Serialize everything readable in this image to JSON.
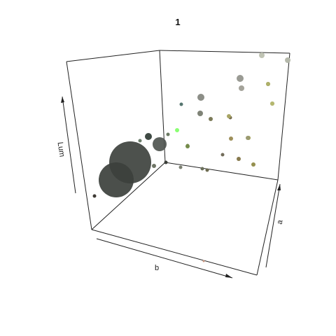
{
  "chart_data": {
    "type": "scatter",
    "subtype": "3d-bubble",
    "title": "1",
    "xlabel": "b",
    "ylabel": "a",
    "zlabel": "Lum",
    "axis_ticks": false,
    "grid": false,
    "box": true,
    "points": [
      {
        "color": "#3e423e",
        "size": 30
      },
      {
        "color": "#3c403c",
        "size": 25
      },
      {
        "color": "#4f5550",
        "size": 10
      },
      {
        "color": "#3f4a44",
        "size": 5
      },
      {
        "color": "#3e3a34",
        "size": 2.5
      },
      {
        "color": "#3a3d38",
        "size": 2.5
      },
      {
        "color": "#6e7465",
        "size": 3
      },
      {
        "color": "#7a7f70",
        "size": 2.5
      },
      {
        "color": "#6b7d6a",
        "size": 2.5
      },
      {
        "color": "#6b7a63",
        "size": 2.5
      },
      {
        "color": "#73884f",
        "size": 2.5
      },
      {
        "color": "#8c8e87",
        "size": 5
      },
      {
        "color": "#55756f",
        "size": 2.5
      },
      {
        "color": "#7f8377",
        "size": 4
      },
      {
        "color": "#8aff72",
        "size": 3
      },
      {
        "color": "#748b4a",
        "size": 3
      },
      {
        "color": "#6a6f5b",
        "size": 2.5
      },
      {
        "color": "#6d6b50",
        "size": 2.5
      },
      {
        "color": "#726c5a",
        "size": 2.5
      },
      {
        "color": "#6c6a55",
        "size": 2.5
      },
      {
        "color": "#766b4d",
        "size": 2.5
      },
      {
        "color": "#7b7a58",
        "size": 3
      },
      {
        "color": "#877a4e",
        "size": 3
      },
      {
        "color": "#95904f",
        "size": 3
      },
      {
        "color": "#a09d52",
        "size": 3
      },
      {
        "color": "#9a9a72",
        "size": 3
      },
      {
        "color": "#a8a564",
        "size": 3
      },
      {
        "color": "#9e8f5a",
        "size": 3
      },
      {
        "color": "#9a9b94",
        "size": 5
      },
      {
        "color": "#a4a39a",
        "size": 4
      },
      {
        "color": "#a5a28b",
        "size": 3
      },
      {
        "color": "#a7a494",
        "size": 3
      },
      {
        "color": "#c0c4b4",
        "size": 4
      },
      {
        "color": "#b5b9ab",
        "size": 4
      },
      {
        "color": "#aeb068",
        "size": 3
      },
      {
        "color": "#b5b86f",
        "size": 3
      },
      {
        "color": "#c8947e",
        "size": 1.5
      }
    ]
  }
}
